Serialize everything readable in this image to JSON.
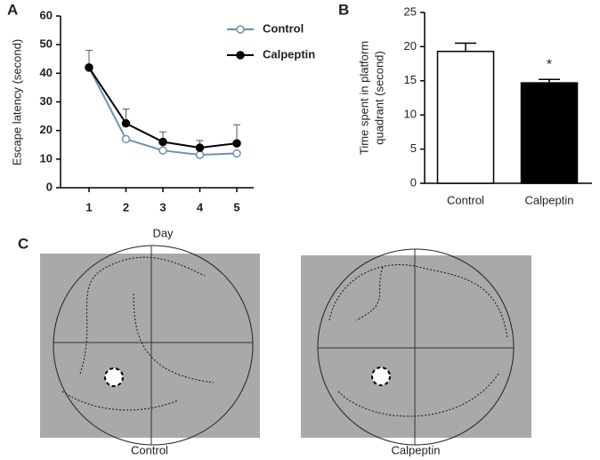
{
  "chart_data": [
    {
      "type": "line",
      "label": "A",
      "xlabel": "Day",
      "ylabel": "Escape latency (second)",
      "categories": [
        "1",
        "2",
        "3",
        "4",
        "5"
      ],
      "series": [
        {
          "name": "Control",
          "color": "#6f8fb0",
          "fill": "#ffffff",
          "values": [
            42,
            17,
            13,
            11.5,
            12
          ]
        },
        {
          "name": "Calpeptin",
          "color": "#000000",
          "fill": "#000000",
          "values": [
            42,
            22.5,
            16,
            14,
            15.5
          ],
          "errors": [
            6,
            5,
            3.5,
            2.5,
            6.5
          ]
        }
      ],
      "ylim": [
        0,
        60
      ],
      "yticks": [
        0,
        10,
        20,
        30,
        40,
        50,
        60
      ]
    },
    {
      "type": "bar",
      "label": "B",
      "ylabel": [
        "Time spent in platform",
        "quadrant (second)"
      ],
      "categories": [
        "Control",
        "Calpeptin"
      ],
      "values": [
        19.3,
        14.7
      ],
      "errors": [
        1.2,
        0.5
      ],
      "colors": [
        "#ffffff",
        "#000000"
      ],
      "annotations": [
        "",
        "*"
      ],
      "ylim": [
        0,
        25
      ],
      "yticks": [
        0,
        5,
        10,
        15,
        20,
        25
      ]
    }
  ],
  "panel_c": {
    "label": "C",
    "images": [
      "Control",
      "Calpeptin"
    ]
  }
}
